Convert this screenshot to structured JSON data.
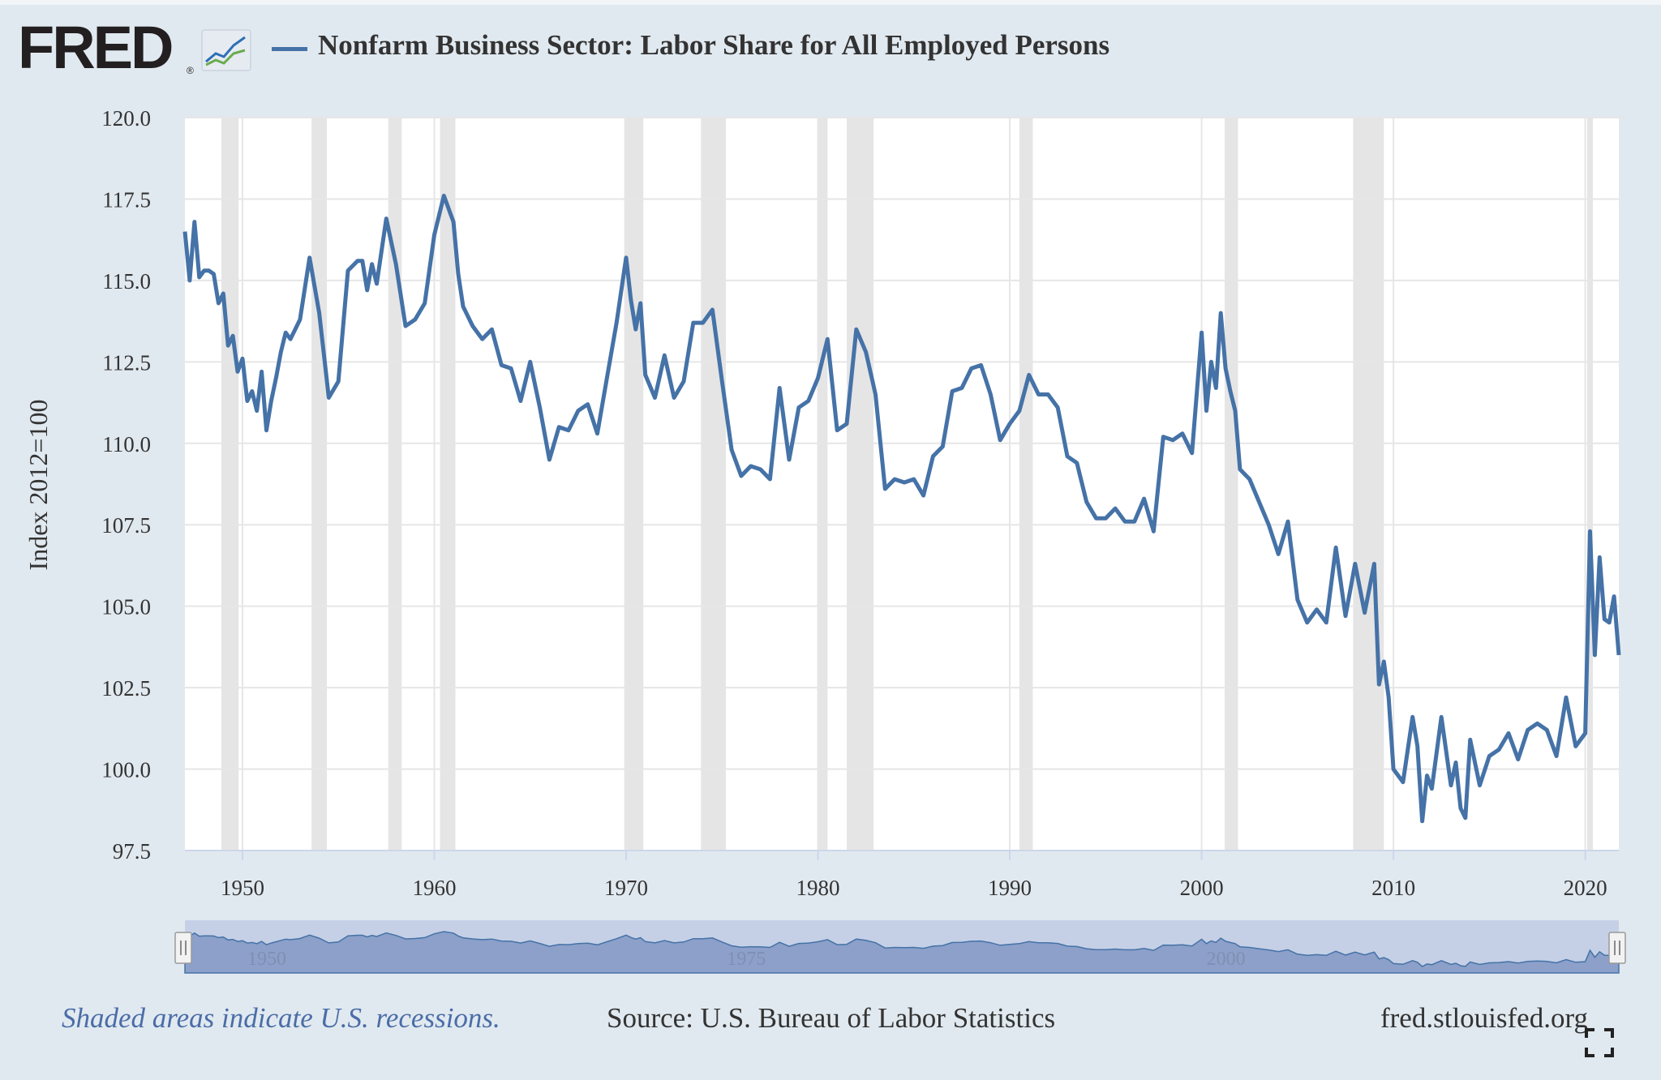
{
  "header": {
    "logo_text": "FRED",
    "logo_reg": "®",
    "title": "Nonfarm Business Sector: Labor Share for All Employed Persons"
  },
  "footer": {
    "note": "Shaded areas indicate U.S. recessions.",
    "source": "Source: U.S. Bureau of Labor Statistics",
    "url": "fred.stlouisfed.org"
  },
  "icons": [
    "fred-graph-icon",
    "fullscreen-icon",
    "range-handle-icon"
  ],
  "colors": {
    "background": "#e1e9f0",
    "plot": "#ffffff",
    "line": "#4572a7",
    "recession": "#e5e5e5",
    "navigator_fill": "#8ca0c9",
    "navigator_bg": "#c5d0e6"
  },
  "chart_data": {
    "type": "line",
    "title": "Nonfarm Business Sector: Labor Share for All Employed Persons",
    "ylabel": "Index 2012=100",
    "xlabel": "",
    "ylim": [
      97.5,
      120.0
    ],
    "xlim": [
      1947.0,
      2021.75
    ],
    "y_ticks": [
      "97.5",
      "100.0",
      "102.5",
      "105.0",
      "107.5",
      "110.0",
      "112.5",
      "115.0",
      "117.5",
      "120.0"
    ],
    "x_ticks": [
      "1950",
      "1960",
      "1970",
      "1980",
      "1990",
      "2000",
      "2010",
      "2020"
    ],
    "grid": true,
    "legend": "top-left",
    "recessions": [
      [
        1948.9,
        1949.8
      ],
      [
        1953.6,
        1954.4
      ],
      [
        1957.6,
        1958.3
      ],
      [
        1960.3,
        1961.1
      ],
      [
        1969.9,
        1970.9
      ],
      [
        1973.9,
        1975.2
      ],
      [
        1980.0,
        1980.5
      ],
      [
        1981.5,
        1982.9
      ],
      [
        1990.5,
        1991.2
      ],
      [
        2001.2,
        2001.9
      ],
      [
        2007.9,
        2009.5
      ],
      [
        2020.1,
        2020.4
      ]
    ],
    "navigator": {
      "x_labels": [
        "1950",
        "1975",
        "2000"
      ]
    },
    "series": [
      {
        "name": "Nonfarm Business Sector: Labor Share for All Employed Persons",
        "x": [
          1947.0,
          1947.25,
          1947.5,
          1947.75,
          1948.0,
          1948.25,
          1948.5,
          1948.75,
          1949.0,
          1949.25,
          1949.5,
          1949.75,
          1950.0,
          1950.25,
          1950.5,
          1950.75,
          1951.0,
          1951.25,
          1951.5,
          1951.75,
          1952.0,
          1952.25,
          1952.5,
          1952.75,
          1953.0,
          1953.5,
          1954.0,
          1954.5,
          1955.0,
          1955.5,
          1956.0,
          1956.25,
          1956.5,
          1956.75,
          1957.0,
          1957.5,
          1958.0,
          1958.5,
          1959.0,
          1959.5,
          1960.0,
          1960.5,
          1961.0,
          1961.25,
          1961.5,
          1962.0,
          1962.5,
          1963.0,
          1963.5,
          1964.0,
          1964.5,
          1965.0,
          1965.5,
          1966.0,
          1966.5,
          1967.0,
          1967.5,
          1968.0,
          1968.5,
          1969.0,
          1969.5,
          1970.0,
          1970.25,
          1970.5,
          1970.75,
          1971.0,
          1971.5,
          1972.0,
          1972.5,
          1973.0,
          1973.5,
          1974.0,
          1974.5,
          1975.0,
          1975.5,
          1976.0,
          1976.5,
          1977.0,
          1977.5,
          1978.0,
          1978.5,
          1979.0,
          1979.5,
          1980.0,
          1980.5,
          1981.0,
          1981.5,
          1982.0,
          1982.5,
          1983.0,
          1983.5,
          1984.0,
          1984.5,
          1985.0,
          1985.5,
          1986.0,
          1986.5,
          1987.0,
          1987.5,
          1988.0,
          1988.5,
          1989.0,
          1989.5,
          1990.0,
          1990.5,
          1991.0,
          1991.5,
          1992.0,
          1992.5,
          1993.0,
          1993.5,
          1994.0,
          1994.5,
          1995.0,
          1995.5,
          1996.0,
          1996.5,
          1997.0,
          1997.5,
          1998.0,
          1998.5,
          1999.0,
          1999.5,
          2000.0,
          2000.25,
          2000.5,
          2000.75,
          2001.0,
          2001.25,
          2001.5,
          2001.75,
          2002.0,
          2002.5,
          2003.0,
          2003.5,
          2004.0,
          2004.5,
          2005.0,
          2005.5,
          2006.0,
          2006.5,
          2007.0,
          2007.5,
          2008.0,
          2008.5,
          2009.0,
          2009.25,
          2009.5,
          2009.75,
          2010.0,
          2010.5,
          2011.0,
          2011.25,
          2011.5,
          2011.75,
          2012.0,
          2012.5,
          2013.0,
          2013.25,
          2013.5,
          2013.75,
          2014.0,
          2014.5,
          2015.0,
          2015.5,
          2016.0,
          2016.5,
          2017.0,
          2017.5,
          2018.0,
          2018.5,
          2019.0,
          2019.5,
          2020.0,
          2020.25,
          2020.5,
          2020.75,
          2021.0,
          2021.25,
          2021.5,
          2021.75
        ],
        "values": [
          116.5,
          115.0,
          116.8,
          115.1,
          115.3,
          115.3,
          115.2,
          114.3,
          114.6,
          113.0,
          113.3,
          112.2,
          112.6,
          111.3,
          111.6,
          111.0,
          112.2,
          110.4,
          111.3,
          112.0,
          112.8,
          113.4,
          113.2,
          113.5,
          113.8,
          115.7,
          114.0,
          111.4,
          111.9,
          115.3,
          115.6,
          115.6,
          114.7,
          115.5,
          114.9,
          116.9,
          115.5,
          113.6,
          113.8,
          114.3,
          116.4,
          117.6,
          116.8,
          115.2,
          114.2,
          113.6,
          113.2,
          113.5,
          112.4,
          112.3,
          111.3,
          112.5,
          111.1,
          109.5,
          110.5,
          110.4,
          111.0,
          111.2,
          110.3,
          112.0,
          113.7,
          115.7,
          114.4,
          113.5,
          114.3,
          112.1,
          111.4,
          112.7,
          111.4,
          111.9,
          113.7,
          113.7,
          114.1,
          111.9,
          109.8,
          109.0,
          109.3,
          109.2,
          108.9,
          111.7,
          109.5,
          111.1,
          111.3,
          112.0,
          113.2,
          110.4,
          110.6,
          113.5,
          112.8,
          111.5,
          108.6,
          108.9,
          108.8,
          108.9,
          108.4,
          109.6,
          109.9,
          111.6,
          111.7,
          112.3,
          112.4,
          111.5,
          110.1,
          110.6,
          111.0,
          112.1,
          111.5,
          111.5,
          111.1,
          109.6,
          109.4,
          108.2,
          107.7,
          107.7,
          108.0,
          107.6,
          107.6,
          108.3,
          107.3,
          110.2,
          110.1,
          110.3,
          109.7,
          113.4,
          111.0,
          112.5,
          111.7,
          114.0,
          112.3,
          111.6,
          111.0,
          109.2,
          108.9,
          108.2,
          107.5,
          106.6,
          107.6,
          105.2,
          104.5,
          104.9,
          104.5,
          106.8,
          104.7,
          106.3,
          104.8,
          106.3,
          102.6,
          103.3,
          102.2,
          100.0,
          99.6,
          101.6,
          100.7,
          98.4,
          99.8,
          99.4,
          101.6,
          99.5,
          100.2,
          98.8,
          98.5,
          100.9,
          99.5,
          100.4,
          100.6,
          101.1,
          100.3,
          101.2,
          101.4,
          101.2,
          100.4,
          102.2,
          100.7,
          101.1,
          107.3,
          103.5,
          106.5,
          104.6,
          104.5,
          105.3,
          103.5
        ]
      }
    ]
  }
}
